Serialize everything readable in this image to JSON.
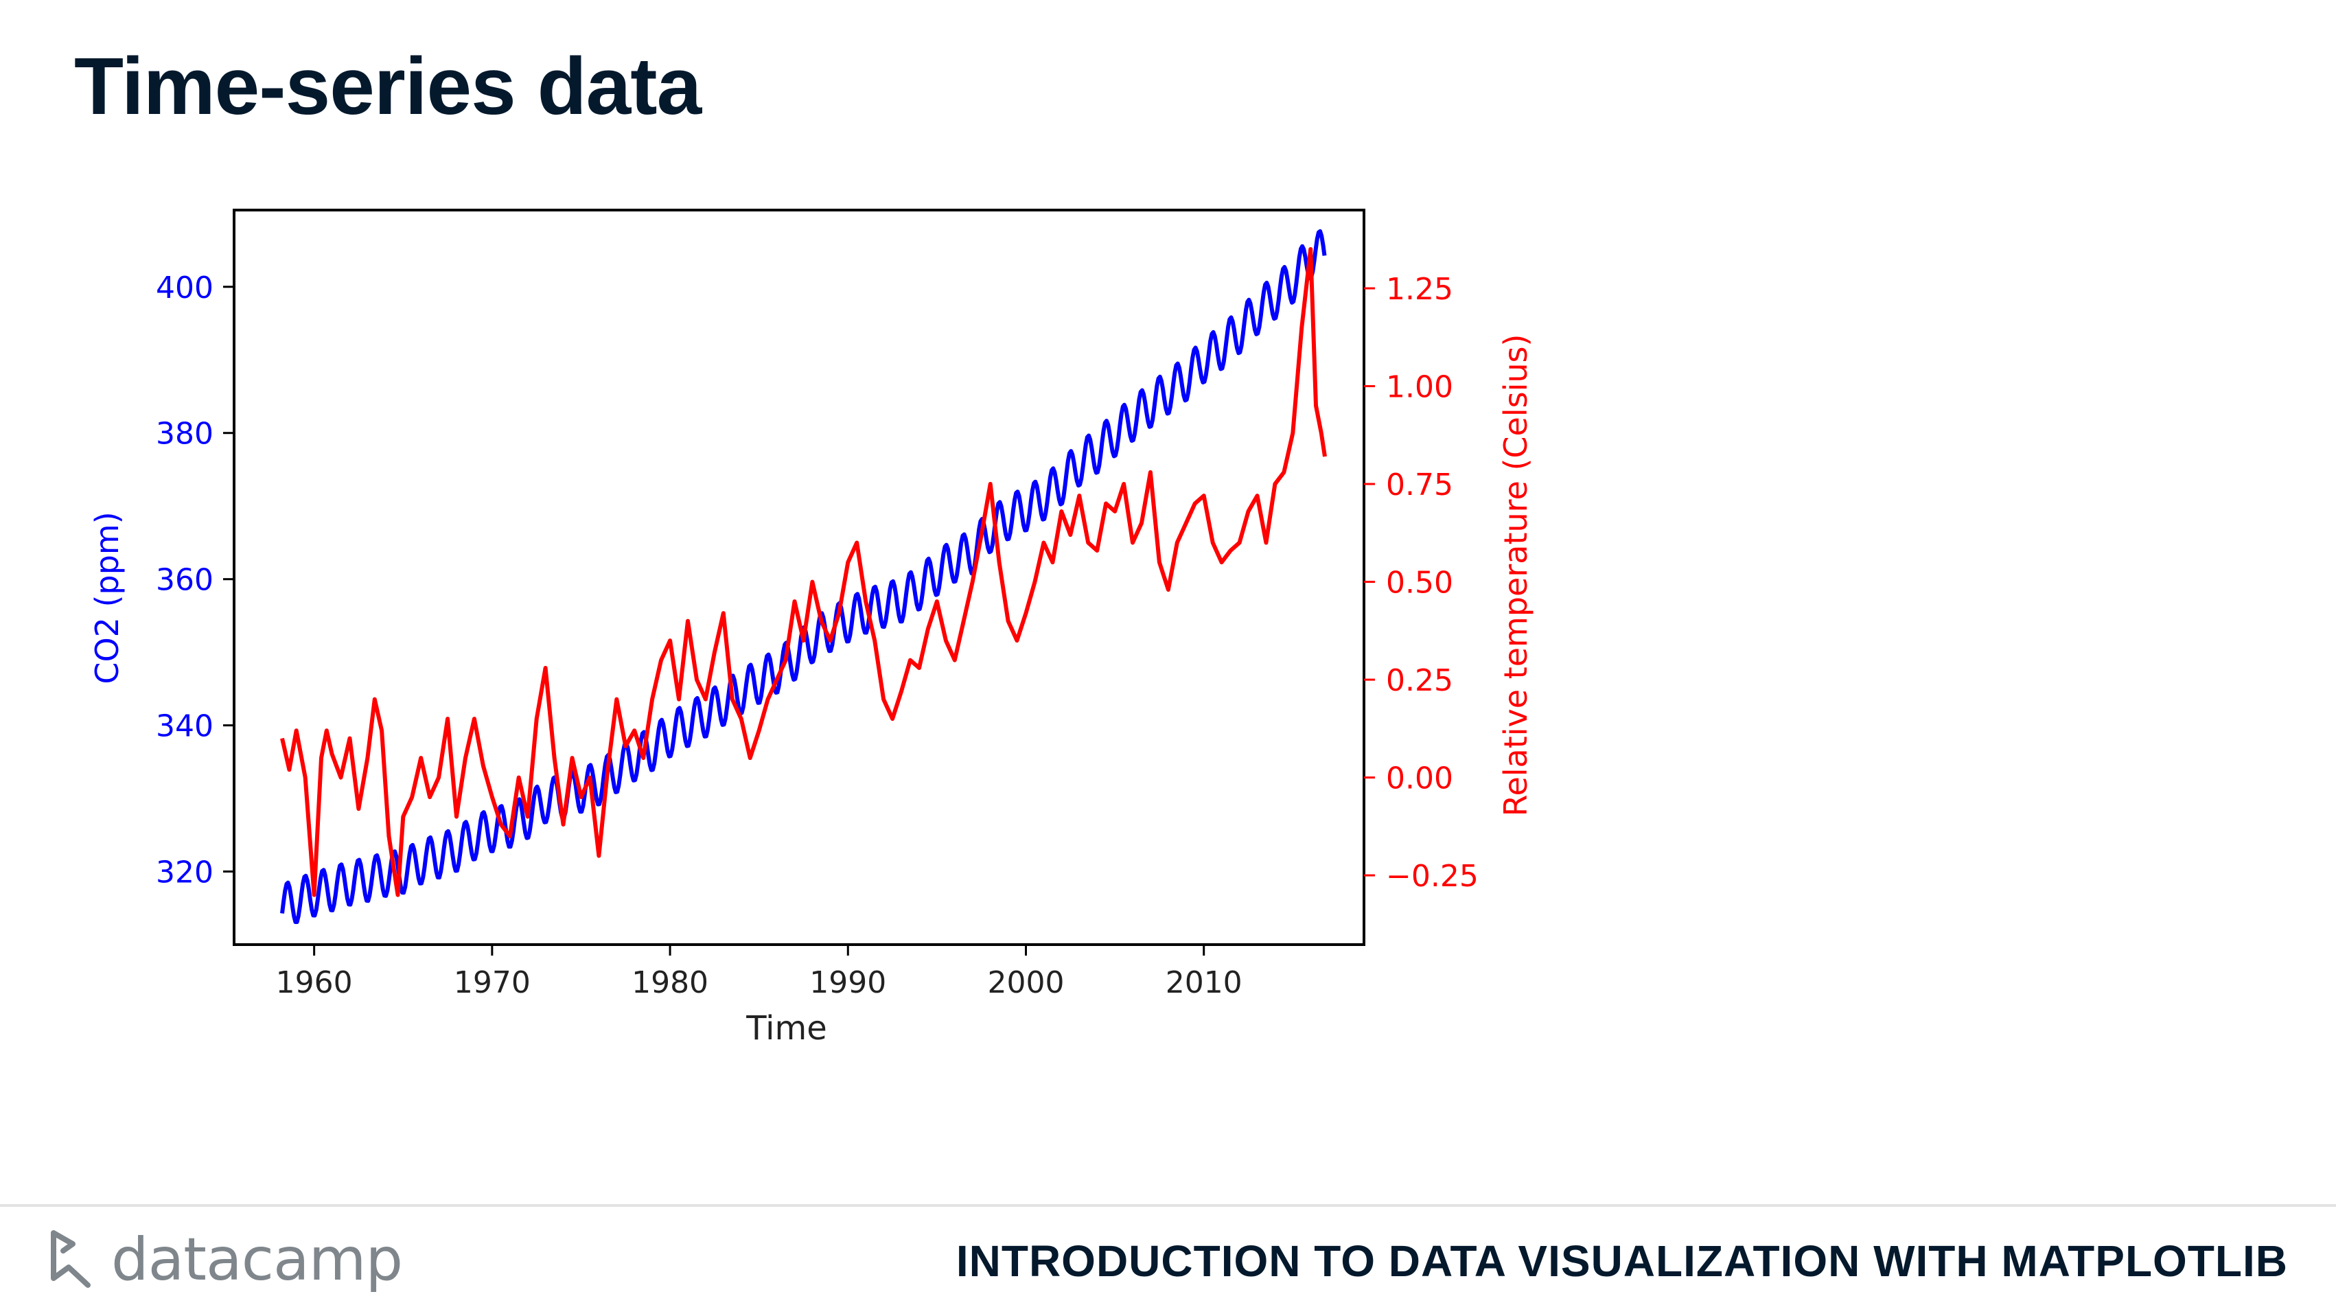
{
  "slide": {
    "title": "Time-series data",
    "course": "INTRODUCTION TO DATA VISUALIZATION WITH MATPLOTLIB",
    "brand": "datacamp",
    "logo_icon": "datacamp-logo-icon"
  },
  "chart_data": {
    "type": "line",
    "xlabel": "Time",
    "xlim": [
      1955.5,
      2019
    ],
    "xticks": [
      1960,
      1970,
      1980,
      1990,
      2000,
      2010
    ],
    "grid": false,
    "left_axis": {
      "label": "CO2 (ppm)",
      "color": "#0000ff",
      "ylim": [
        310,
        410.5
      ],
      "ticks": [
        320,
        340,
        360,
        380,
        400
      ]
    },
    "right_axis": {
      "label": "Relative temperature (Celsius)",
      "color": "#ff0000",
      "ylim": [
        -0.427,
        1.45
      ],
      "ticks": [
        -0.25,
        0.0,
        0.25,
        0.5,
        0.75,
        1.0,
        1.25
      ],
      "tick_labels": [
        "−0.25",
        "0.00",
        "0.25",
        "0.50",
        "0.75",
        "1.00",
        "1.25"
      ]
    },
    "series": [
      {
        "axis": "left",
        "color": "#0000ff",
        "x": [
          1958.2,
          1959,
          1960,
          1961,
          1962,
          1963,
          1964,
          1965,
          1966,
          1967,
          1968,
          1969,
          1970,
          1971,
          1972,
          1973,
          1974,
          1975,
          1976,
          1977,
          1978,
          1979,
          1980,
          1981,
          1982,
          1983,
          1984,
          1985,
          1986,
          1987,
          1988,
          1989,
          1990,
          1991,
          1992,
          1993,
          1994,
          1995,
          1996,
          1997,
          1998,
          1999,
          2000,
          2001,
          2002,
          2003,
          2004,
          2005,
          2006,
          2007,
          2008,
          2009,
          2010,
          2011,
          2012,
          2013,
          2014,
          2015,
          2016,
          2016.8
        ],
        "values": [
          315.2,
          316.0,
          316.9,
          317.6,
          318.4,
          318.9,
          319.6,
          320.0,
          321.3,
          322.1,
          323.0,
          324.6,
          325.7,
          326.3,
          327.5,
          329.7,
          330.2,
          331.1,
          332.1,
          333.8,
          335.4,
          336.8,
          338.7,
          340.1,
          341.4,
          343.0,
          344.6,
          346.0,
          347.4,
          349.2,
          351.6,
          353.1,
          354.4,
          355.6,
          356.4,
          357.1,
          358.8,
          360.8,
          362.6,
          363.7,
          366.7,
          368.4,
          369.6,
          371.1,
          373.2,
          375.8,
          377.5,
          379.8,
          381.9,
          383.8,
          385.6,
          387.4,
          389.9,
          391.7,
          393.9,
          396.5,
          398.6,
          400.8,
          404.2,
          404.9
        ],
        "seasonal_amplitude": 3.0
      },
      {
        "axis": "right",
        "color": "#ff0000",
        "x": [
          1958.2,
          1958.6,
          1959,
          1959.5,
          1960,
          1960.4,
          1960.7,
          1961,
          1961.5,
          1962,
          1962.5,
          1963,
          1963.4,
          1963.8,
          1964.2,
          1964.7,
          1965,
          1965.5,
          1966,
          1966.5,
          1967,
          1967.5,
          1968,
          1968.5,
          1969,
          1969.5,
          1970,
          1970.5,
          1971,
          1971.5,
          1972,
          1972.5,
          1973,
          1973.5,
          1974,
          1974.5,
          1975,
          1975.5,
          1976,
          1976.5,
          1977,
          1977.5,
          1978,
          1978.5,
          1979,
          1979.5,
          1980,
          1980.5,
          1981,
          1981.5,
          1982,
          1982.5,
          1983,
          1983.5,
          1984,
          1984.5,
          1985,
          1985.5,
          1986,
          1986.5,
          1987,
          1987.5,
          1988,
          1988.5,
          1989,
          1989.5,
          1990,
          1990.5,
          1991,
          1991.5,
          1992,
          1992.5,
          1993,
          1993.5,
          1994,
          1994.5,
          1995,
          1995.5,
          1996,
          1996.5,
          1997,
          1997.5,
          1998,
          1998.5,
          1999,
          1999.5,
          2000,
          2000.5,
          2001,
          2001.5,
          2002,
          2002.5,
          2003,
          2003.5,
          2004,
          2004.5,
          2005,
          2005.5,
          2006,
          2006.5,
          2007,
          2007.5,
          2008,
          2008.5,
          2009,
          2009.5,
          2010,
          2010.5,
          2011,
          2011.5,
          2012,
          2012.5,
          2013,
          2013.5,
          2014,
          2014.5,
          2015,
          2015.5,
          2016,
          2016.3,
          2016.6,
          2016.8
        ],
        "values": [
          0.1,
          0.02,
          0.12,
          0.0,
          -0.3,
          0.05,
          0.12,
          0.06,
          0.0,
          0.1,
          -0.08,
          0.05,
          0.2,
          0.12,
          -0.15,
          -0.3,
          -0.1,
          -0.05,
          0.05,
          -0.05,
          0.0,
          0.15,
          -0.1,
          0.05,
          0.15,
          0.03,
          -0.05,
          -0.12,
          -0.15,
          0.0,
          -0.1,
          0.15,
          0.28,
          0.05,
          -0.12,
          0.05,
          -0.05,
          0.0,
          -0.2,
          0.02,
          0.2,
          0.08,
          0.12,
          0.05,
          0.2,
          0.3,
          0.35,
          0.2,
          0.4,
          0.25,
          0.2,
          0.32,
          0.42,
          0.2,
          0.15,
          0.05,
          0.12,
          0.2,
          0.25,
          0.3,
          0.45,
          0.35,
          0.5,
          0.4,
          0.35,
          0.42,
          0.55,
          0.6,
          0.45,
          0.35,
          0.2,
          0.15,
          0.22,
          0.3,
          0.28,
          0.38,
          0.45,
          0.35,
          0.3,
          0.4,
          0.5,
          0.62,
          0.75,
          0.55,
          0.4,
          0.35,
          0.42,
          0.5,
          0.6,
          0.55,
          0.68,
          0.62,
          0.72,
          0.6,
          0.58,
          0.7,
          0.68,
          0.75,
          0.6,
          0.65,
          0.78,
          0.55,
          0.48,
          0.6,
          0.65,
          0.7,
          0.72,
          0.6,
          0.55,
          0.58,
          0.6,
          0.68,
          0.72,
          0.6,
          0.75,
          0.78,
          0.88,
          1.15,
          1.35,
          0.95,
          0.88,
          0.82
        ]
      }
    ]
  }
}
